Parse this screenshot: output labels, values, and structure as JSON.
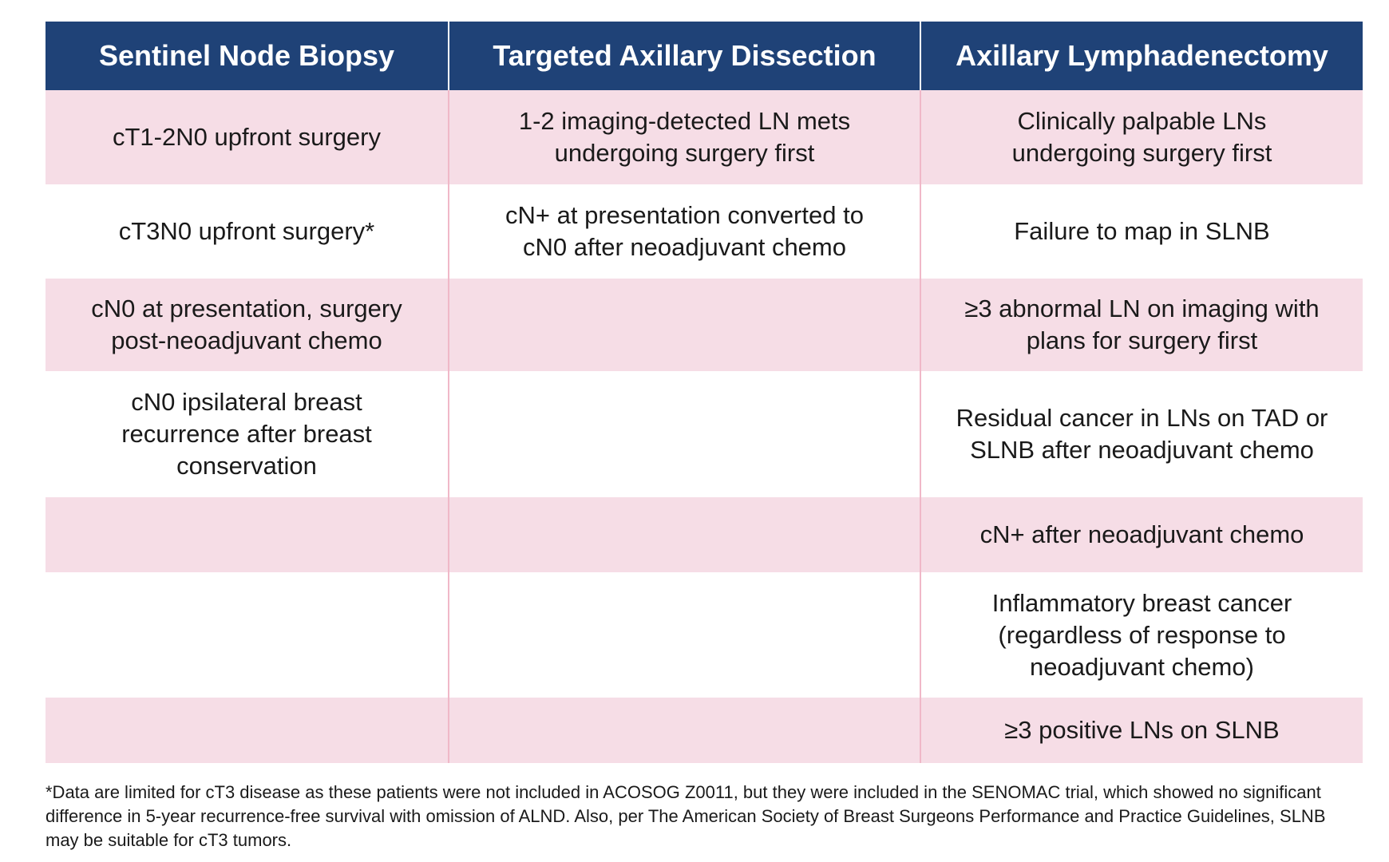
{
  "table": {
    "columns": [
      "Sentinel Node Biopsy",
      "Targeted Axillary Dissection",
      "Axillary Lymphadenectomy"
    ],
    "rows": [
      [
        "cT1-2N0 upfront surgery",
        "1-2 imaging-detected LN mets undergoing surgery first",
        "Clinically palpable LNs undergoing surgery first"
      ],
      [
        "cT3N0 upfront surgery*",
        "cN+ at presentation converted to cN0 after neoadjuvant chemo",
        "Failure to map in SLNB"
      ],
      [
        "cN0 at presentation, surgery post-neoadjuvant chemo",
        null,
        "≥3 abnormal LN on imaging with plans for surgery first"
      ],
      [
        "cN0 ipsilateral breast recurrence after breast conservation",
        null,
        "Residual cancer in LNs on TAD or SLNB after neoadjuvant chemo"
      ],
      [
        null,
        null,
        "cN+ after neoadjuvant chemo"
      ],
      [
        null,
        null,
        "Inflammatory breast cancer (regardless of response to neoadjuvant chemo)"
      ],
      [
        null,
        null,
        "≥3 positive LNs on SLNB"
      ]
    ]
  },
  "footnote": "*Data are limited for cT3 disease as these patients were not included in ACOSOG Z0011, but they were included in the SENOMAC trial, which showed no significant difference in 5-year recurrence-free survival with omission of ALND. Also, per The American Society of Breast Surgeons Performance and Practice Guidelines, SLNB may be suitable for cT3 tumors."
}
